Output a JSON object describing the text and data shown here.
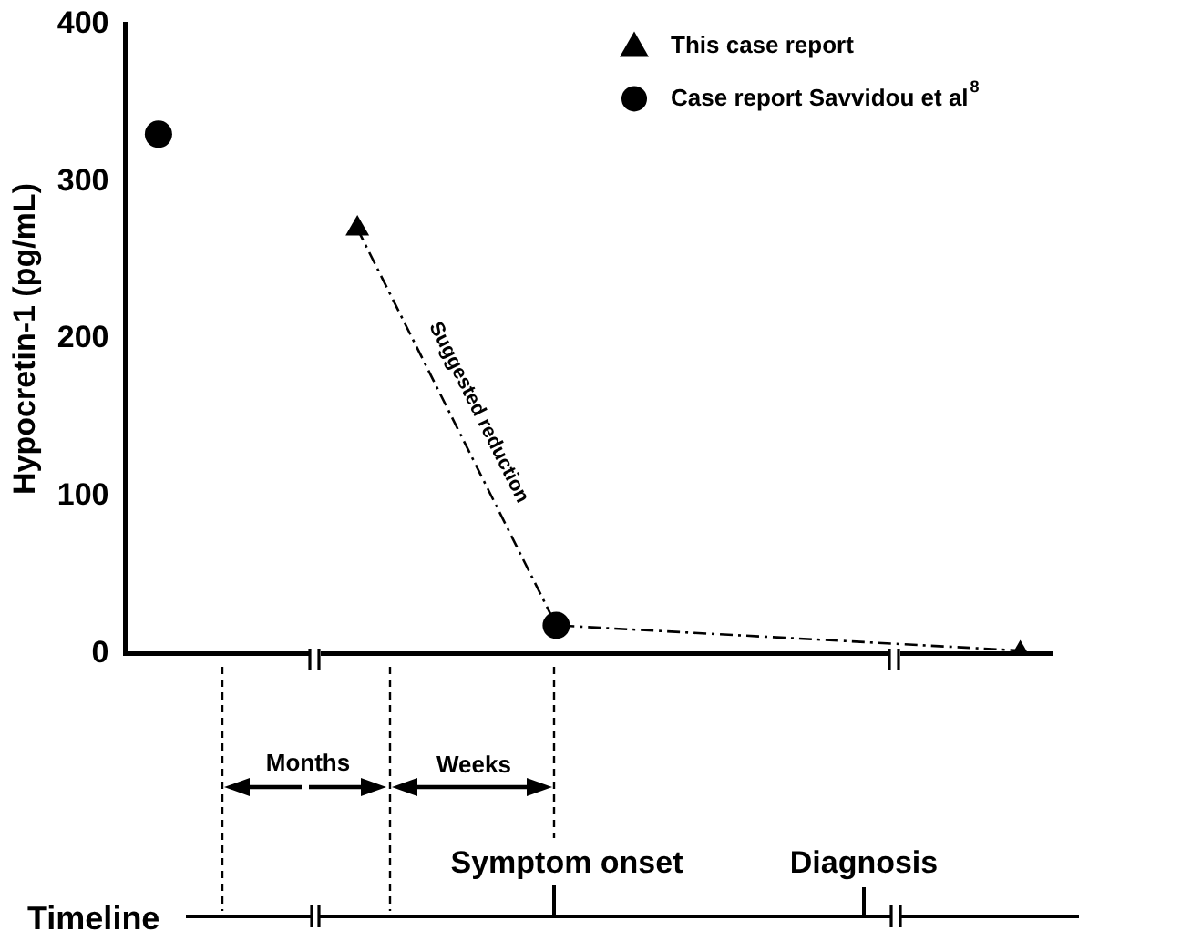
{
  "chart_data": {
    "type": "scatter",
    "ylabel": "Hypocretin-1 (pg/mL)",
    "categories": [
      null,
      null,
      null,
      null,
      null,
      null,
      null,
      null,
      null,
      null,
      null,
      null,
      null,
      null
    ],
    "series": [
      {
        "type": "line",
        "color": "#000000",
        "line_style": "dashed",
        "marker": "none",
        "values": [
          null,
          null,
          null,
          270,
          null,
          null,
          18,
          null,
          null,
          null,
          null,
          null,
          null,
          2
        ]
      },
      {
        "name": "This case report",
        "color": "#000000",
        "marker": "triangle",
        "values": [
          null,
          null,
          null,
          270,
          null,
          null,
          null,
          null,
          null,
          null,
          null,
          null,
          null,
          0
        ]
      },
      {
        "name": "Case report Savvidou et al$^{8}$",
        "color": "#000000",
        "marker": "circle",
        "values": [
          330,
          null,
          null,
          null,
          null,
          null,
          18,
          null,
          null,
          null,
          null,
          null,
          null,
          null
        ]
      }
    ],
    "ylim": [
      0,
      400
    ],
    "yticks": [
      0,
      100,
      200,
      300,
      400
    ],
    "grid": false,
    "legend": "top right",
    "tick_labels": "y",
    "annotations": [
      "Suggested reduction",
      "Months",
      "Weeks",
      "Symptom onset",
      "Diagnosis",
      "Timeline"
    ]
  }
}
